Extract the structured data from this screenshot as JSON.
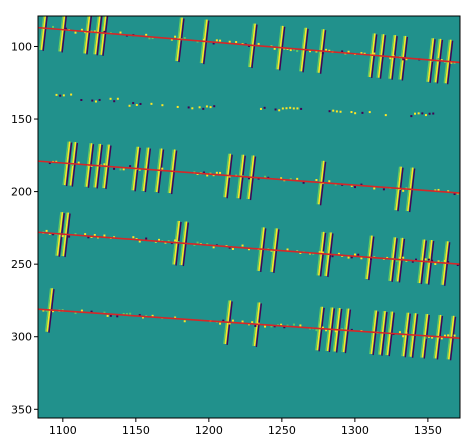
{
  "chart_data": {
    "type": "heatmap",
    "title": "",
    "xlabel": "",
    "ylabel": "",
    "xlim": [
      1083,
      1372
    ],
    "ylim": [
      356,
      79
    ],
    "x_ticks": [
      1100,
      1150,
      1200,
      1250,
      1300,
      1350
    ],
    "y_ticks": [
      100,
      150,
      200,
      250,
      300,
      350
    ],
    "colormap": "viridis",
    "grid": false,
    "legend": "none",
    "colors": {
      "background": "#21918c",
      "positive": "#fde725",
      "mid_positive": "#5ec962",
      "negative": "#440154",
      "fit_line": "#d62728",
      "frame": "#000000"
    },
    "fit_lines": [
      {
        "x": [
          1083,
          1372
        ],
        "y": [
          87,
          111
        ]
      },
      {
        "x": [
          1083,
          1372
        ],
        "y": [
          179,
          201
        ]
      },
      {
        "x": [
          1083,
          1372
        ],
        "y": [
          228,
          250
        ]
      },
      {
        "x": [
          1083,
          1372
        ],
        "y": [
          281,
          301
        ]
      }
    ],
    "stroke_groups": [
      {
        "band": 0,
        "x": [
          1087,
          1100,
          1117,
          1124,
          1128,
          1180,
          1197,
          1230,
          1249,
          1265,
          1277,
          1312,
          1318,
          1326,
          1333,
          1352,
          1357,
          1364
        ]
      },
      {
        "band": 1,
        "x": [
          1103,
          1107,
          1118,
          1124,
          1130,
          1150,
          1157,
          1166,
          1175,
          1213,
          1222,
          1229,
          1277,
          1330,
          1338
        ]
      },
      {
        "band": 2,
        "x": [
          1098,
          1102,
          1178,
          1183,
          1236,
          1245,
          1277,
          1282,
          1310,
          1326,
          1331,
          1346,
          1351,
          1362
        ]
      },
      {
        "band": 3,
        "x": [
          1091,
          1213,
          1233,
          1276,
          1283,
          1288,
          1294,
          1313,
          1319,
          1324,
          1335,
          1340,
          1348,
          1357,
          1366
        ]
      }
    ],
    "dashes": [
      {
        "x": [
          1095,
          1106
        ],
        "y": 134
      },
      {
        "x": [
          1112,
          1138
        ],
        "y": 137
      },
      {
        "x": [
          1145,
          1170
        ],
        "y": 140
      },
      {
        "x": [
          1178,
          1210
        ],
        "y": 142
      },
      {
        "x": [
          1235,
          1265
        ],
        "y": 143
      },
      {
        "x": [
          1282,
          1310
        ],
        "y": 145
      },
      {
        "x": [
          1318,
          1355
        ],
        "y": 147
      }
    ]
  }
}
